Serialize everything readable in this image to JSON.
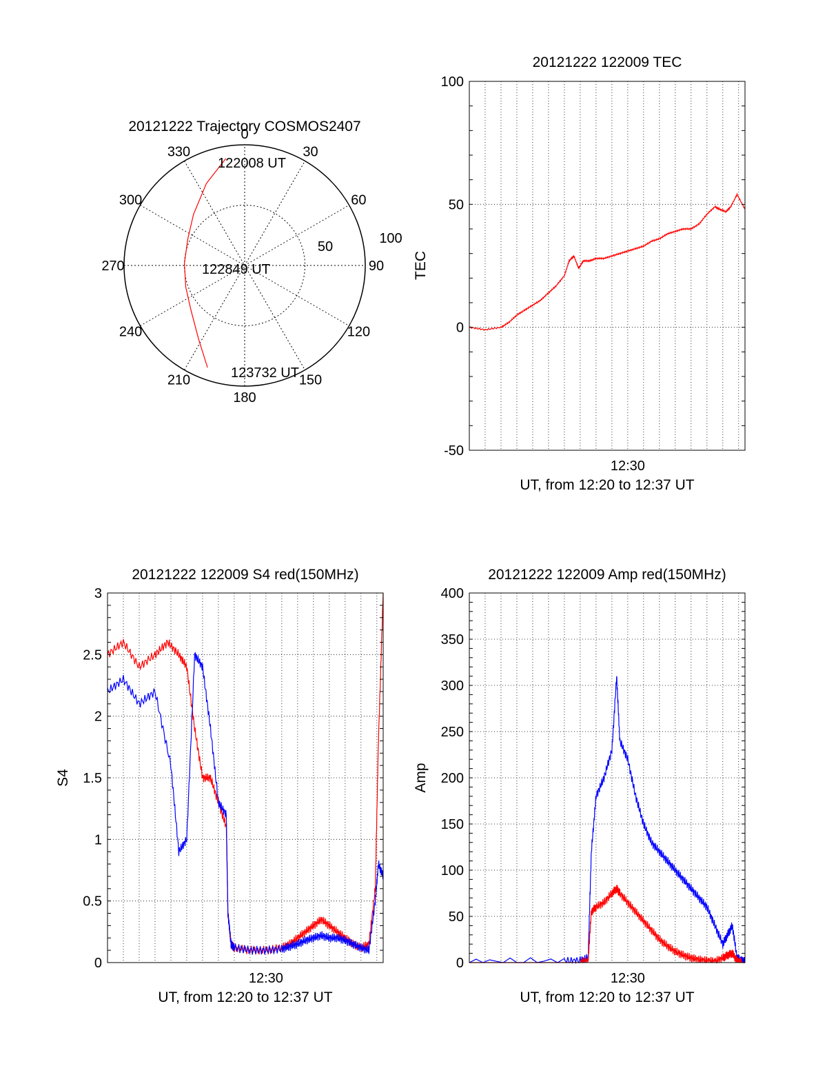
{
  "colors": {
    "series_red": "#ff0000",
    "series_blue": "#0000ff",
    "axis": "#000000",
    "grid": "#000000"
  },
  "chart_data": [
    {
      "id": "polar",
      "type": "polar-trajectory",
      "title": "20121222 Trajectory COSMOS2407",
      "angle_labels": [
        "0",
        "30",
        "60",
        "90",
        "120",
        "150",
        "180",
        "210",
        "240",
        "270",
        "300",
        "330"
      ],
      "radial_labels": [
        "50",
        "100"
      ],
      "rlim": [
        0,
        100
      ],
      "grid": true,
      "trajectory": {
        "color": "red",
        "points": [
          {
            "az": 350,
            "r": 90
          },
          {
            "az": 335,
            "r": 75
          },
          {
            "az": 315,
            "r": 60
          },
          {
            "az": 295,
            "r": 52
          },
          {
            "az": 272,
            "r": 50
          },
          {
            "az": 250,
            "r": 52
          },
          {
            "az": 230,
            "r": 58
          },
          {
            "az": 212,
            "r": 72
          },
          {
            "az": 200,
            "r": 90
          }
        ],
        "annotations": [
          {
            "text": "122008 UT",
            "at": "start"
          },
          {
            "text": "122849 UT",
            "at": "center"
          },
          {
            "text": "123732 UT",
            "at": "end"
          }
        ]
      }
    },
    {
      "id": "tec",
      "type": "line",
      "title": "20121222 122009 TEC",
      "xlabel": "UT, from 12:20 to 12:37 UT",
      "ylabel": "TEC",
      "xlim": [
        0,
        17.4
      ],
      "ylim": [
        -50,
        100
      ],
      "yticks": [
        "-50",
        "0",
        "50",
        "100"
      ],
      "xtick_labels": [
        {
          "x": 10,
          "label": "12:30"
        }
      ],
      "grid": true,
      "series": [
        {
          "color": "red",
          "x": [
            0,
            1,
            2,
            2.5,
            3,
            3.5,
            4,
            4.5,
            5,
            5.5,
            6,
            6.3,
            6.6,
            6.9,
            7.2,
            7.6,
            8,
            8.5,
            9,
            9.5,
            10,
            10.5,
            11,
            11.5,
            12,
            12.5,
            13,
            13.5,
            14,
            14.5,
            15,
            15.5,
            15.8,
            16.2,
            16.5,
            16.9,
            17.4
          ],
          "y": [
            0,
            -1,
            0,
            2,
            5,
            7,
            9,
            11,
            14,
            17,
            21,
            27,
            29,
            24,
            27,
            27,
            28,
            28,
            29,
            30,
            31,
            32,
            33,
            35,
            36,
            38,
            39,
            40,
            40,
            42,
            46,
            49,
            48,
            47,
            49,
            54,
            48
          ]
        }
      ]
    },
    {
      "id": "s4",
      "type": "line",
      "title": "20121222 122009 S4 red(150MHz)",
      "xlabel": "UT, from 12:20 to 12:37 UT",
      "ylabel": "S4",
      "xlim": [
        0,
        17.4
      ],
      "ylim": [
        0,
        3
      ],
      "yticks": [
        "0",
        "0.5",
        "1",
        "1.5",
        "2",
        "2.5",
        "3"
      ],
      "xtick_labels": [
        {
          "x": 10,
          "label": "12:30"
        }
      ],
      "grid": true,
      "series": [
        {
          "color": "red",
          "x": [
            0,
            1,
            2,
            3,
            3.8,
            4.5,
            5,
            5.5,
            6,
            6.5,
            7,
            7.5,
            7.6,
            7.8,
            8,
            9,
            10,
            11,
            11.5,
            12,
            12.5,
            13,
            13.5,
            14,
            14.5,
            15,
            15.5,
            16,
            16.5,
            16.9,
            17.1,
            17.4
          ],
          "y": [
            2.5,
            2.6,
            2.4,
            2.5,
            2.6,
            2.5,
            2.4,
            1.9,
            1.5,
            1.5,
            1.3,
            1.1,
            0.4,
            0.15,
            0.12,
            0.1,
            0.1,
            0.12,
            0.15,
            0.2,
            0.25,
            0.3,
            0.35,
            0.3,
            0.25,
            0.2,
            0.15,
            0.12,
            0.15,
            0.6,
            1.8,
            3
          ]
        },
        {
          "color": "blue",
          "x": [
            0,
            1,
            2,
            3,
            4,
            4.5,
            5,
            5.5,
            6,
            6.5,
            7,
            7.5,
            7.6,
            7.8,
            8,
            9,
            10,
            11,
            11.5,
            12,
            12.5,
            13,
            13.5,
            14,
            14.5,
            15,
            15.5,
            16,
            16.5,
            16.9,
            17.1,
            17.4
          ],
          "y": [
            2.2,
            2.3,
            2.1,
            2.2,
            1.6,
            0.9,
            1.0,
            2.5,
            2.4,
            1.9,
            1.3,
            1.2,
            0.4,
            0.15,
            0.12,
            0.1,
            0.1,
            0.11,
            0.13,
            0.15,
            0.18,
            0.2,
            0.22,
            0.2,
            0.2,
            0.18,
            0.15,
            0.12,
            0.1,
            0.5,
            0.8,
            0.7
          ]
        }
      ]
    },
    {
      "id": "amp",
      "type": "line",
      "title": "20121222 122009 Amp red(150MHz)",
      "xlabel": "UT, from 12:20 to 12:37 UT",
      "ylabel": "Amp",
      "xlim": [
        0,
        17.4
      ],
      "ylim": [
        0,
        400
      ],
      "yticks": [
        "0",
        "50",
        "100",
        "150",
        "200",
        "250",
        "300",
        "350",
        "400"
      ],
      "xtick_labels": [
        {
          "x": 10,
          "label": "12:30"
        }
      ],
      "grid": true,
      "series": [
        {
          "color": "blue",
          "x": [
            0,
            6,
            7,
            7.5,
            7.7,
            8,
            8.5,
            9,
            9.3,
            9.5,
            10,
            10.5,
            11,
            11.5,
            12,
            12.5,
            13,
            13.5,
            14,
            14.5,
            15,
            15.5,
            16,
            16.3,
            16.6,
            16.9,
            17.2,
            17.4
          ],
          "y": [
            0,
            1,
            2,
            5,
            120,
            180,
            200,
            230,
            310,
            240,
            220,
            180,
            150,
            130,
            120,
            110,
            100,
            90,
            80,
            70,
            60,
            40,
            20,
            30,
            40,
            5,
            2,
            1
          ]
        },
        {
          "color": "red",
          "x": [
            0,
            6,
            7,
            7.5,
            7.7,
            8,
            8.5,
            9,
            9.3,
            9.5,
            10,
            10.5,
            11,
            11.5,
            12,
            12.5,
            13,
            13.5,
            14,
            14.5,
            15,
            15.5,
            16,
            16.3,
            16.6,
            16.9,
            17.2,
            17.4
          ],
          "y": [
            0,
            0,
            0,
            2,
            55,
            60,
            65,
            75,
            80,
            75,
            65,
            55,
            45,
            35,
            25,
            18,
            12,
            8,
            5,
            3,
            2,
            1,
            5,
            8,
            10,
            2,
            0,
            0
          ]
        }
      ]
    }
  ]
}
